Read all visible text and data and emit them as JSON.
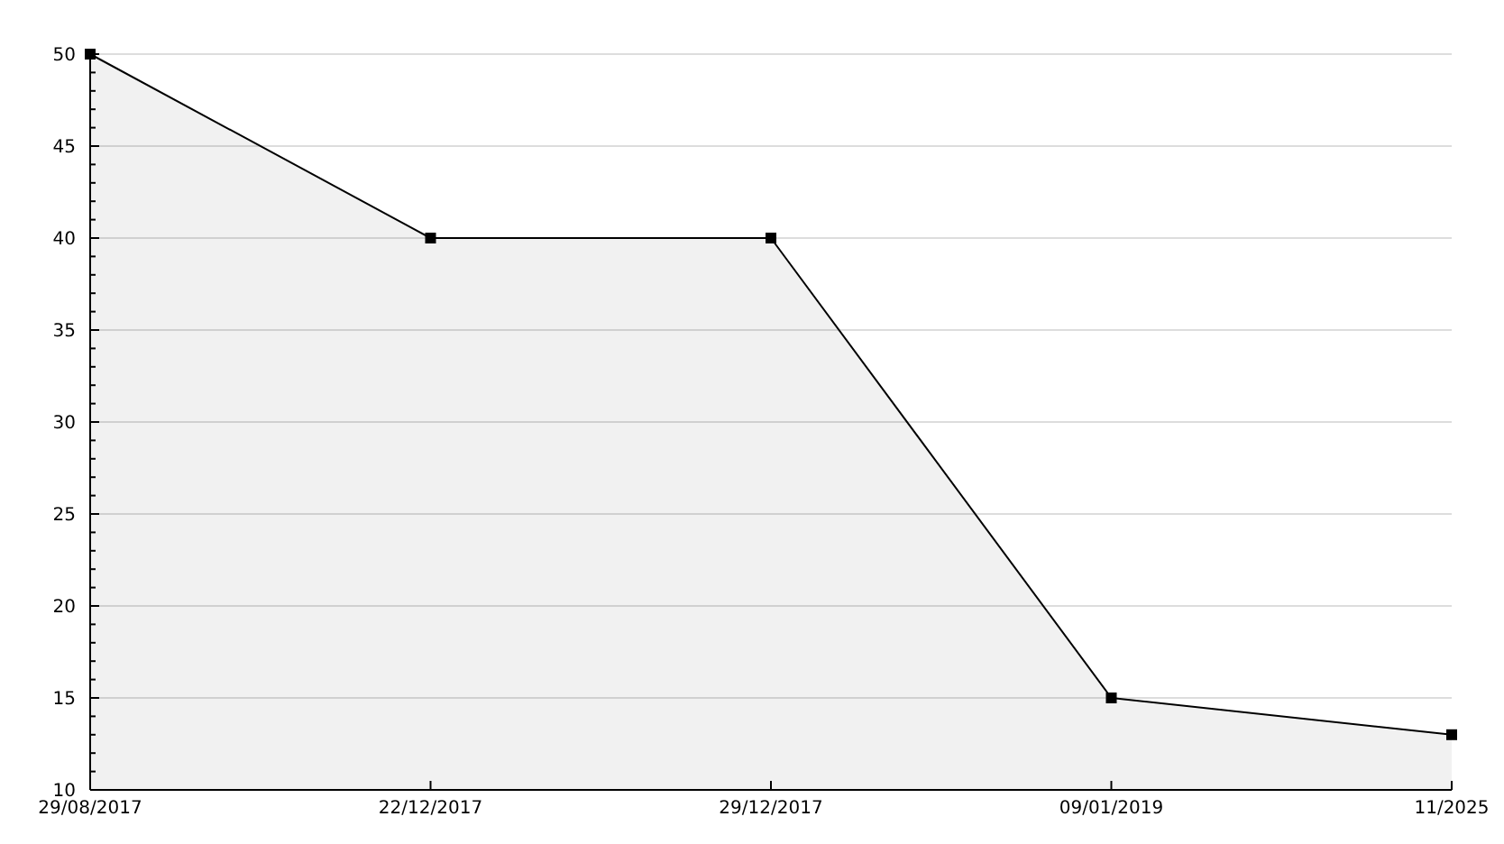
{
  "chart_data": {
    "type": "area",
    "categories": [
      "29/08/2017",
      "22/12/2017",
      "29/12/2017",
      "09/01/2019",
      "11/2025"
    ],
    "series": [
      {
        "color": "#000000",
        "values": [
          50,
          40,
          40,
          15,
          13
        ]
      }
    ],
    "ylim": [
      10,
      50
    ],
    "yticks": [
      10,
      {
        "value": 11,
        "label": null
      },
      {
        "value": 12,
        "label": null
      },
      {
        "value": 13,
        "label": null
      },
      {
        "value": 14,
        "label": null
      },
      15,
      {
        "value": 16,
        "label": null
      },
      {
        "value": 17,
        "label": null
      },
      {
        "value": 18,
        "label": null
      },
      {
        "value": 19,
        "label": null
      },
      20,
      {
        "value": 21,
        "label": null
      },
      {
        "value": 22,
        "label": null
      },
      {
        "value": 23,
        "label": null
      },
      {
        "value": 24,
        "label": null
      },
      25,
      {
        "value": 26,
        "label": null
      },
      {
        "value": 27,
        "label": null
      },
      {
        "value": 28,
        "label": null
      },
      {
        "value": 29,
        "label": null
      },
      30,
      {
        "value": 31,
        "label": null
      },
      {
        "value": 32,
        "label": null
      },
      {
        "value": 33,
        "label": null
      },
      {
        "value": 34,
        "label": null
      },
      35,
      {
        "value": 36,
        "label": null
      },
      {
        "value": 37,
        "label": null
      },
      {
        "value": 38,
        "label": null
      },
      {
        "value": 39,
        "label": null
      },
      40,
      {
        "value": 41,
        "label": null
      },
      {
        "value": 42,
        "label": null
      },
      {
        "value": 43,
        "label": null
      },
      {
        "value": 44,
        "label": null
      },
      45,
      {
        "value": 46,
        "label": null
      },
      {
        "value": 47,
        "label": null
      },
      {
        "value": 48,
        "label": null
      },
      {
        "value": 49,
        "label": null
      },
      50
    ],
    "grid": "y",
    "marker": "square",
    "line_style": "solid"
  }
}
